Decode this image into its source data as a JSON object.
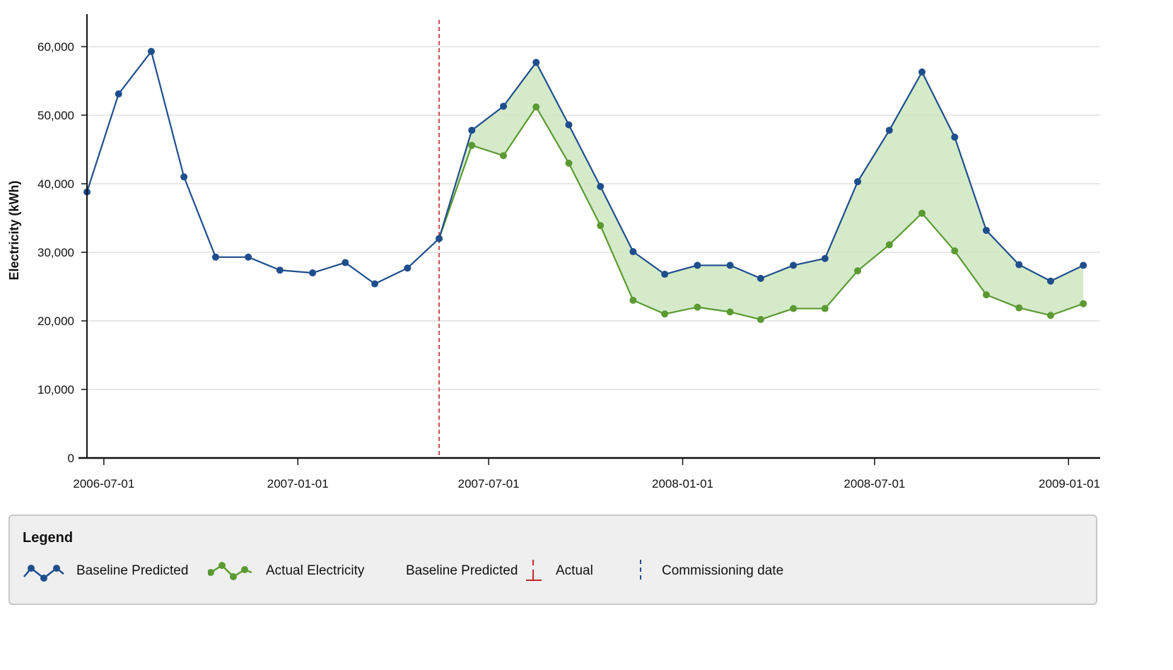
{
  "chart_data": {
    "type": "line",
    "title": "",
    "xlabel": "",
    "ylabel": "Electricity (kWh)",
    "ylim": [
      0,
      60000
    ],
    "yticks": [
      0,
      10000,
      20000,
      30000,
      40000,
      50000,
      60000
    ],
    "ytick_labels": [
      "0",
      "10,000",
      "20,000",
      "30,000",
      "40,000",
      "50,000",
      "60,000"
    ],
    "xticks": [
      "2006-07-01",
      "2007-01-01",
      "2007-07-01",
      "2008-01-01",
      "2008-07-01",
      "2009-01-01"
    ],
    "xlim": [
      "2006-06-15",
      "2009-01-31"
    ],
    "grid": true,
    "commissioning_date": "2007-05-15",
    "series": [
      {
        "name": "Baseline Predicted",
        "color": "#1f4e8c",
        "x": [
          "2006-06-15",
          "2006-07-15",
          "2006-08-15",
          "2006-09-15",
          "2006-10-15",
          "2006-11-15",
          "2006-12-15",
          "2007-01-15",
          "2007-02-15",
          "2007-03-15",
          "2007-04-15",
          "2007-05-15",
          "2007-06-15",
          "2007-07-15",
          "2007-08-15",
          "2007-09-15",
          "2007-10-15",
          "2007-11-15",
          "2007-12-15",
          "2008-01-15",
          "2008-02-15",
          "2008-03-15",
          "2008-04-15",
          "2008-05-15",
          "2008-06-15",
          "2008-07-15",
          "2008-08-15",
          "2008-09-15",
          "2008-10-15",
          "2008-11-15",
          "2008-12-15",
          "2009-01-15"
        ],
        "values": [
          38800,
          53100,
          59300,
          41000,
          29300,
          29300,
          27400,
          27000,
          28500,
          25400,
          27700,
          32000,
          47800,
          51300,
          57700,
          48600,
          39600,
          30100,
          26800,
          28100,
          28100,
          26200,
          28100,
          29100,
          40300,
          47800,
          56300,
          46800,
          33200,
          28200,
          25800,
          28100
        ]
      },
      {
        "name": "Actual Electricity",
        "color": "#5b9a32",
        "x": [
          "2007-05-15",
          "2007-06-15",
          "2007-07-15",
          "2007-08-15",
          "2007-09-15",
          "2007-10-15",
          "2007-11-15",
          "2007-12-15",
          "2008-01-15",
          "2008-02-15",
          "2008-03-15",
          "2008-04-15",
          "2008-05-15",
          "2008-06-15",
          "2008-07-15",
          "2008-08-15",
          "2008-09-15",
          "2008-10-15",
          "2008-11-15",
          "2008-12-15",
          "2009-01-15"
        ],
        "values": [
          32000,
          45600,
          44100,
          51200,
          43000,
          33900,
          23000,
          21000,
          22000,
          21300,
          20200,
          21800,
          21800,
          27300,
          31100,
          35700,
          30200,
          23800,
          21900,
          20800,
          22500
        ]
      }
    ],
    "fill_between": {
      "series": [
        "Baseline Predicted",
        "Actual Electricity"
      ],
      "color": "#cde6bf"
    }
  },
  "legend": {
    "title": "Legend",
    "items": [
      {
        "label": "Baseline Predicted",
        "icon": "blue-line-marker-icon"
      },
      {
        "label": "Actual Electricity",
        "icon": "green-line-marker-icon"
      },
      {
        "label": "Baseline Predicted",
        "icon": ""
      },
      {
        "label": "Actual",
        "icon": "red-dash-tick-icon"
      },
      {
        "label": "Commissioning date",
        "icon": "blue-dash-line-icon"
      }
    ]
  },
  "colors": {
    "baseline": "#1f4e8c",
    "actual": "#5b9a32",
    "fill": "#cde6bf",
    "commissioning_line": "#c0282d",
    "grid": "#d9d9d9"
  }
}
